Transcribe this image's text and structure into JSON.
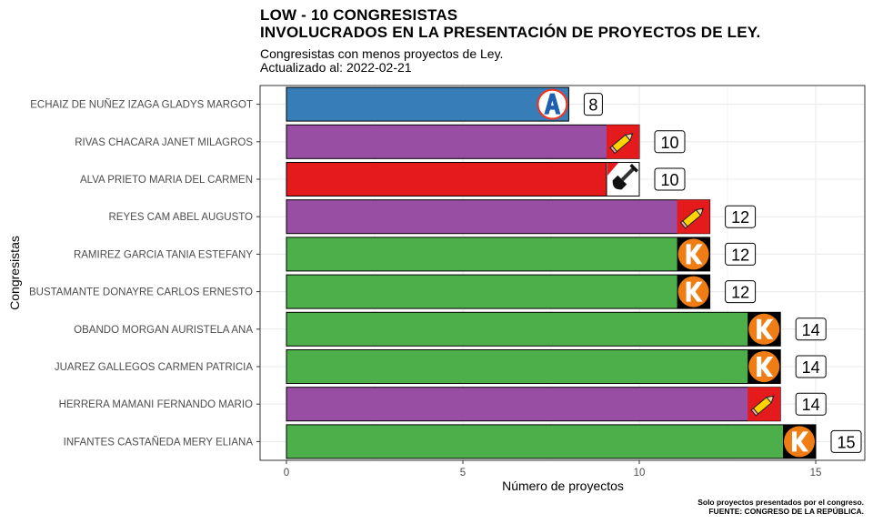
{
  "header": {
    "title_line1": "LOW - 10 CONGRESISTAS",
    "title_line2": "INVOLUCRADOS EN LA PRESENTACIÓN DE PROYECTOS DE LEY.",
    "subtitle_line1": "Congresistas con menos proyectos de Ley.",
    "subtitle_line2": "Actualizado al: 2022-02-21"
  },
  "footer": {
    "caption_line1": "Solo proyectos presentados por el congreso.",
    "caption_line2": "FUENTE: CONGRESO DE LA REPÚBLICA."
  },
  "chart_data": {
    "type": "bar",
    "orientation": "horizontal",
    "xlabel": "Número de proyectos",
    "ylabel": "Congresistas",
    "xlim": [
      0,
      16
    ],
    "xticks": [
      0,
      5,
      10,
      15
    ],
    "grid": true,
    "categories": [
      "ECHAIZ DE NUÑEZ IZAGA GLADYS MARGOT",
      "RIVAS CHACARA JANET MILAGROS",
      "ALVA PRIETO MARIA DEL CARMEN",
      "REYES CAM ABEL AUGUSTO",
      "RAMIREZ GARCIA TANIA ESTEFANY",
      "BUSTAMANTE DONAYRE CARLOS ERNESTO",
      "OBANDO MORGAN AURISTELA ANA",
      "JUAREZ GALLEGOS CARMEN PATRICIA",
      "HERRERA MAMANI FERNANDO MARIO",
      "INFANTES CASTAÑEDA MERY ELIANA"
    ],
    "values": [
      8,
      10,
      10,
      12,
      12,
      12,
      14,
      14,
      14,
      15
    ],
    "bar_colors": [
      "#377EB8",
      "#984EA3",
      "#E41A1C",
      "#984EA3",
      "#4DAF4A",
      "#4DAF4A",
      "#4DAF4A",
      "#4DAF4A",
      "#984EA3",
      "#4DAF4A"
    ],
    "party_icons": [
      "logo-a-icon",
      "pencil-icon",
      "shovel-icon",
      "pencil-icon",
      "logo-k-icon",
      "logo-k-icon",
      "logo-k-icon",
      "logo-k-icon",
      "pencil-icon",
      "logo-k-icon"
    ],
    "colors": {
      "panel_border": "#333333",
      "grid": "#ebebeb",
      "axis_text": "#4d4d4d",
      "icon_a_blue": "#1f5fb0",
      "icon_a_ring": "#e8382b",
      "icon_k_orange": "#f07d13",
      "icon_pencil_bg": "#e41a1c",
      "icon_pencil_body": "#ffd400"
    }
  }
}
